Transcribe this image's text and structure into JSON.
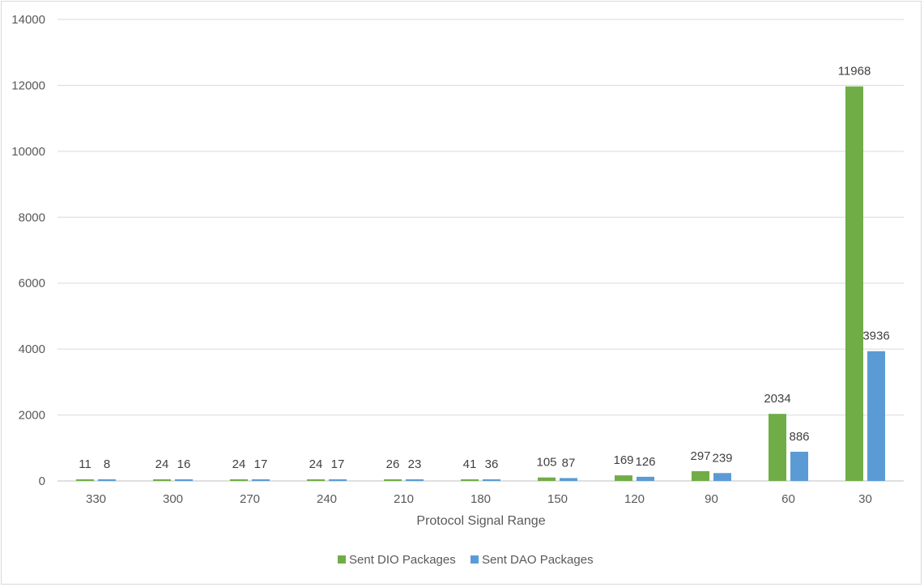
{
  "chart_data": {
    "type": "bar",
    "categories": [
      "330",
      "300",
      "270",
      "240",
      "210",
      "180",
      "150",
      "120",
      "90",
      "60",
      "30"
    ],
    "series": [
      {
        "name": "Sent DIO Packages",
        "color": "#70ad47",
        "values": [
          11,
          24,
          24,
          24,
          26,
          41,
          105,
          169,
          297,
          2034,
          11968
        ]
      },
      {
        "name": "Sent DAO Packages",
        "color": "#5b9bd5",
        "values": [
          8,
          16,
          17,
          17,
          23,
          36,
          87,
          126,
          239,
          886,
          3936
        ]
      }
    ],
    "title": "",
    "xlabel": "Protocol Signal Range",
    "ylabel": "",
    "ylim": [
      0,
      14000
    ],
    "yticks": [
      0,
      2000,
      4000,
      6000,
      8000,
      10000,
      12000,
      14000
    ],
    "grid": true,
    "legend": "bottom"
  }
}
